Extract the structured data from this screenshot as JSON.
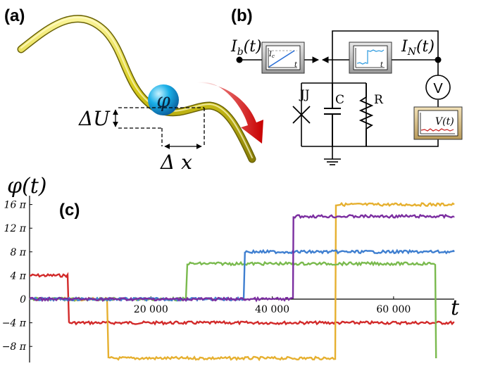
{
  "panel_a": {
    "label": "(a)",
    "phi": "φ",
    "delta_u": "ΔU",
    "delta_x": "Δ x"
  },
  "panel_b": {
    "label": "(b)",
    "ib": "I",
    "ib_sub": "b",
    "ib_arg": "(t)",
    "ic": "I",
    "ic_sub": "c",
    "inn": "I",
    "inn_sub": "N",
    "inn_arg": "(t)",
    "t1": "t",
    "t2": "t",
    "jj": "JJ",
    "c": "C",
    "r": "R",
    "v": "V",
    "vt": "V(t)"
  },
  "panel_c": {
    "label": "(c)",
    "y_title": "φ(t)",
    "x_title": "t"
  },
  "chart_data": {
    "type": "line",
    "xlabel": "t",
    "ylabel": "φ(t)",
    "x_ticks": [
      "20 000",
      "40 000",
      "60 000"
    ],
    "x_tick_values": [
      20000,
      40000,
      60000
    ],
    "y_ticks": [
      "16 π",
      "12 π",
      "8 π",
      "4 π",
      "0",
      "−4 π",
      "−8 π"
    ],
    "y_tick_values": [
      16,
      12,
      8,
      4,
      0,
      -4,
      -8
    ],
    "xlim": [
      0,
      70000
    ],
    "ylim": [
      -10,
      16
    ],
    "y_unit": "π",
    "series": [
      {
        "color": "#d22a2a",
        "steps": [
          [
            0,
            4
          ],
          [
            6500,
            -4
          ],
          [
            70000,
            -4
          ]
        ]
      },
      {
        "color": "#e6b030",
        "steps": [
          [
            0,
            0
          ],
          [
            13000,
            -10
          ],
          [
            50500,
            16
          ],
          [
            70000,
            16
          ]
        ]
      },
      {
        "color": "#7aba4e",
        "steps": [
          [
            0,
            0
          ],
          [
            26000,
            6
          ],
          [
            67000,
            -10
          ]
        ]
      },
      {
        "color": "#3f7fd0",
        "steps": [
          [
            0,
            0
          ],
          [
            35500,
            8
          ],
          [
            70000,
            8
          ]
        ]
      },
      {
        "color": "#7b2ea0",
        "steps": [
          [
            0,
            0
          ],
          [
            43500,
            14
          ],
          [
            70000,
            14
          ]
        ]
      }
    ]
  }
}
